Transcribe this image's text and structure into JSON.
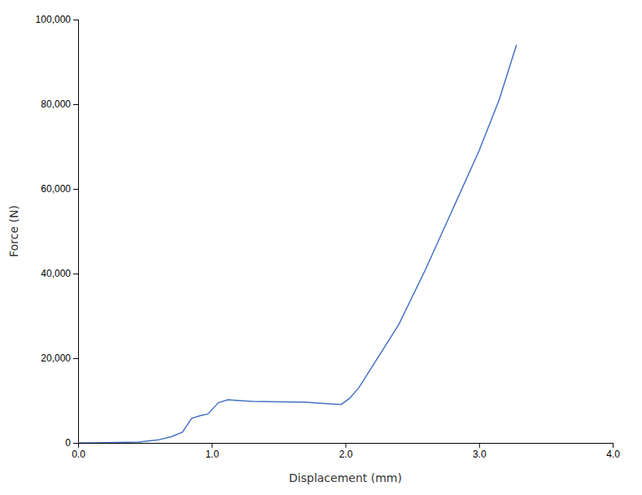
{
  "chart_data": {
    "type": "line",
    "xlabel": "Displacement (mm)",
    "ylabel": "Force (N)",
    "x": [
      0.0,
      0.1,
      0.45,
      0.6,
      0.7,
      0.78,
      0.85,
      0.92,
      0.97,
      1.05,
      1.12,
      1.2,
      1.3,
      1.5,
      1.7,
      1.9,
      1.97,
      2.03,
      2.1,
      2.2,
      2.4,
      2.6,
      2.8,
      3.0,
      3.15,
      3.28
    ],
    "values": [
      0,
      0,
      200,
      700,
      1500,
      2500,
      5800,
      6500,
      6800,
      9500,
      10200,
      10000,
      9800,
      9700,
      9600,
      9200,
      9100,
      10500,
      13000,
      18000,
      28000,
      41000,
      55000,
      69000,
      81000,
      94000
    ],
    "color": "#4472C4",
    "xlim": [
      0.0,
      4.0
    ],
    "ylim": [
      0,
      100000
    ],
    "xticks": [
      {
        "value": 0.0,
        "label": "0.0"
      },
      {
        "value": 1.0,
        "label": "1.0"
      },
      {
        "value": 2.0,
        "label": "2.0"
      },
      {
        "value": 3.0,
        "label": "3.0"
      },
      {
        "value": 4.0,
        "label": "4.0"
      }
    ],
    "yticks": [
      0,
      {
        "value": 20000,
        "label": "20,000"
      },
      {
        "value": 40000,
        "label": "40,000"
      },
      {
        "value": 60000,
        "label": "60,000"
      },
      {
        "value": 80000,
        "label": "80,000"
      },
      {
        "value": 100000,
        "label": "100,000"
      }
    ],
    "grid": false
  }
}
